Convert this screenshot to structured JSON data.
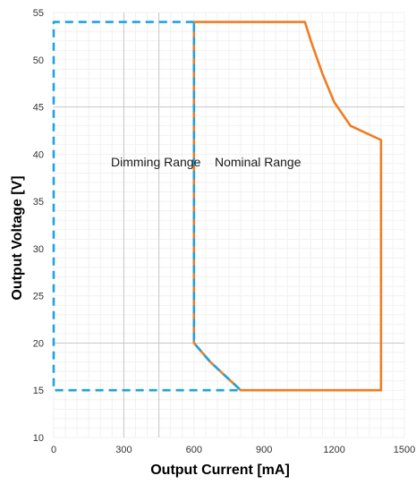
{
  "chart_data": {
    "type": "line",
    "title": "",
    "xlabel": "Output Current [mA]",
    "ylabel": "Output Voltage [V]",
    "xlim": [
      0,
      1500
    ],
    "ylim": [
      10,
      55
    ],
    "x_ticks": [
      0,
      300,
      600,
      900,
      1200,
      1500
    ],
    "y_ticks": [
      10,
      15,
      20,
      25,
      30,
      35,
      40,
      45,
      50,
      55
    ],
    "grid": {
      "horizontal_major": [
        20,
        45
      ],
      "vertical_major": [
        300,
        450
      ],
      "minor": true
    },
    "series": [
      {
        "name": "Nominal Range",
        "color": "#f07c22",
        "style": "solid",
        "points": [
          [
            600,
            54
          ],
          [
            1075,
            54
          ],
          [
            1100,
            52
          ],
          [
            1150,
            48.5
          ],
          [
            1200,
            45.5
          ],
          [
            1270,
            43
          ],
          [
            1400,
            41.5
          ],
          [
            1400,
            15
          ],
          [
            800,
            15
          ],
          [
            735,
            16.5
          ],
          [
            670,
            18
          ],
          [
            600,
            20
          ],
          [
            600,
            54
          ]
        ]
      },
      {
        "name": "Dimming Range",
        "color": "#1fa2e0",
        "style": "dashed",
        "points": [
          [
            600,
            54
          ],
          [
            0,
            54
          ],
          [
            0,
            15
          ],
          [
            800,
            15
          ],
          [
            735,
            16.5
          ],
          [
            670,
            18
          ],
          [
            600,
            20
          ],
          [
            600,
            54
          ]
        ]
      }
    ],
    "annotations": [
      {
        "text": "Dimming Range",
        "x": 250,
        "y": 39
      },
      {
        "text": "Nominal Range",
        "x": 705,
        "y": 39
      }
    ]
  }
}
